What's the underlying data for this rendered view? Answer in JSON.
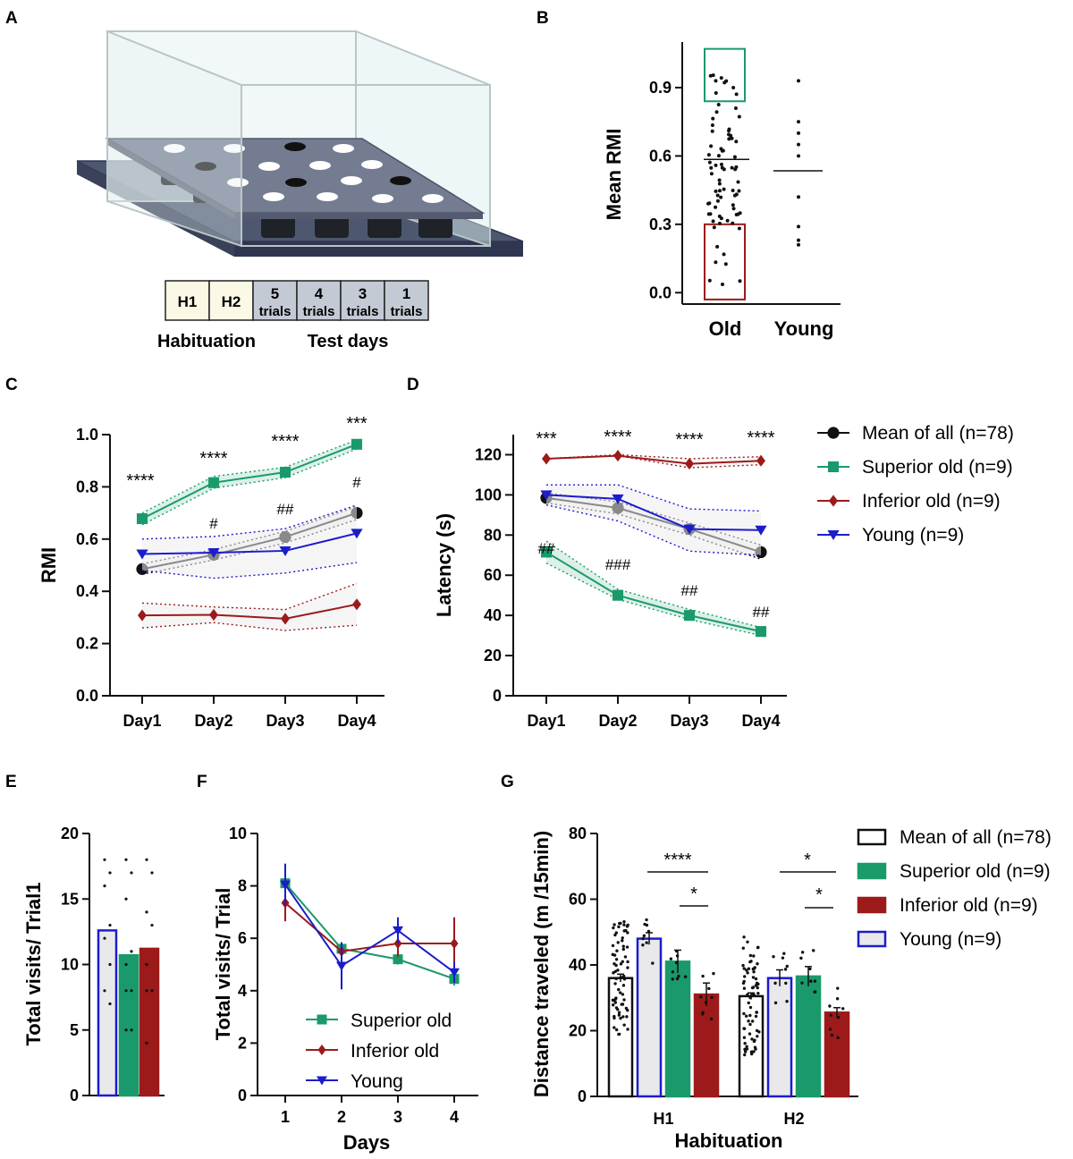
{
  "panel_letters": [
    "A",
    "B",
    "C",
    "D",
    "E",
    "F",
    "G"
  ],
  "panel_a": {
    "timeline_boxes": [
      {
        "main": "H1",
        "sub": ""
      },
      {
        "main": "H2",
        "sub": ""
      },
      {
        "main": "5",
        "sub": "trials"
      },
      {
        "main": "4",
        "sub": "trials"
      },
      {
        "main": "3",
        "sub": "trials"
      },
      {
        "main": "1",
        "sub": "trials"
      }
    ],
    "habituation_label": "Habituation",
    "test_label": "Test days"
  },
  "colors": {
    "black": "#111111",
    "green": "#1a9a6a",
    "red": "#9c1a1a",
    "blue": "#1c1ccc",
    "gray_fill": "#e9e9ec"
  },
  "chart_data": [
    {
      "id": "B",
      "type": "scatter",
      "ylabel": "Mean RMI",
      "ylim": [
        -0.05,
        1.1
      ],
      "yticks": [
        0.0,
        0.3,
        0.6,
        0.9
      ],
      "ytick_labels": [
        "0.0",
        "0.3",
        "0.6",
        "0.9"
      ],
      "categories": [
        "Old",
        "Young"
      ],
      "old_mean": 0.585,
      "young_mean": 0.535,
      "young_points": [
        0.93,
        0.75,
        0.7,
        0.65,
        0.6,
        0.42,
        0.29,
        0.23,
        0.21
      ],
      "old_highlight_top": [
        0.84,
        1.07
      ],
      "old_highlight_bottom": [
        -0.03,
        0.3
      ]
    },
    {
      "id": "C",
      "type": "line",
      "ylabel": "RMI",
      "categories": [
        "Day1",
        "Day2",
        "Day3",
        "Day4"
      ],
      "ylim": [
        0.0,
        1.0
      ],
      "yticks": [
        0.0,
        0.2,
        0.4,
        0.6,
        0.8,
        1.0
      ],
      "ytick_labels": [
        "0.0",
        "0.2",
        "0.4",
        "0.6",
        "0.8",
        "1.0"
      ],
      "series": [
        {
          "name": "Mean of all (n=78)",
          "color": "#111111",
          "marker": "circle",
          "values": [
            0.485,
            0.54,
            0.608,
            0.7
          ],
          "lower": [
            0.465,
            0.52,
            0.585,
            0.675
          ],
          "upper": [
            0.505,
            0.56,
            0.63,
            0.725
          ]
        },
        {
          "name": "Superior old (n=9)",
          "color": "#1a9a6a",
          "marker": "square",
          "values": [
            0.678,
            0.816,
            0.856,
            0.963
          ],
          "lower": [
            0.655,
            0.795,
            0.835,
            0.945
          ],
          "upper": [
            0.7,
            0.84,
            0.875,
            0.98
          ]
        },
        {
          "name": "Inferior old (n=9)",
          "color": "#9c1a1a",
          "marker": "diamond",
          "values": [
            0.308,
            0.31,
            0.295,
            0.35
          ],
          "lower": [
            0.26,
            0.28,
            0.25,
            0.27
          ],
          "upper": [
            0.355,
            0.34,
            0.33,
            0.43
          ]
        },
        {
          "name": "Young (n=9)",
          "color": "#1c1ccc",
          "marker": "triangle",
          "values": [
            0.543,
            0.548,
            0.555,
            0.622
          ],
          "lower": [
            0.48,
            0.45,
            0.47,
            0.51
          ],
          "upper": [
            0.6,
            0.61,
            0.64,
            0.73
          ]
        }
      ],
      "stars": [
        "****",
        "****",
        "****",
        "***"
      ],
      "hashes": [
        "",
        "#",
        "##",
        "#"
      ]
    },
    {
      "id": "D",
      "type": "line",
      "ylabel": "Latency (s)",
      "categories": [
        "Day1",
        "Day2",
        "Day3",
        "Day4"
      ],
      "ylim": [
        0,
        130
      ],
      "yticks": [
        0,
        20,
        40,
        60,
        80,
        100,
        120
      ],
      "ytick_labels": [
        "0",
        "20",
        "40",
        "60",
        "80",
        "100",
        "120"
      ],
      "series": [
        {
          "name": "Mean of all (n=78)",
          "color": "#111111",
          "marker": "circle",
          "values": [
            98.5,
            93.5,
            83,
            71.5
          ],
          "lower": [
            96,
            90.5,
            80,
            68
          ],
          "upper": [
            101,
            96.5,
            86,
            75
          ]
        },
        {
          "name": "Superior old (n=9)",
          "color": "#1a9a6a",
          "marker": "square",
          "values": [
            71.5,
            50,
            40,
            32
          ],
          "lower": [
            66,
            48,
            38,
            30
          ],
          "upper": [
            77,
            53,
            43,
            34
          ]
        },
        {
          "name": "Inferior old (n=9)",
          "color": "#9c1a1a",
          "marker": "diamond",
          "values": [
            118,
            119.5,
            115.5,
            117
          ],
          "lower": [
            118,
            119.5,
            113.5,
            115
          ],
          "upper": [
            118,
            120,
            118,
            119
          ]
        },
        {
          "name": "Young (n=9)",
          "color": "#1c1ccc",
          "marker": "triangle",
          "values": [
            100,
            98,
            83,
            82.5
          ],
          "lower": [
            95,
            87,
            72,
            70
          ],
          "upper": [
            105,
            105,
            93,
            92
          ]
        }
      ],
      "stars": [
        "***",
        "****",
        "****",
        "****"
      ],
      "hashes": [
        "##",
        "###",
        "##",
        "##"
      ],
      "legend": [
        "Mean of all (n=78)",
        "Superior old (n=9)",
        "Inferior old (n=9)",
        "Young (n=9)"
      ]
    },
    {
      "id": "E",
      "type": "bar",
      "ylabel": "Total visits/ Trial1",
      "ylim": [
        0,
        20
      ],
      "yticks": [
        0,
        5,
        10,
        15,
        20
      ],
      "ytick_labels": [
        "0",
        "5",
        "10",
        "15",
        "20"
      ],
      "bars": [
        {
          "name": "Young",
          "value": 12.6,
          "fill": "#e9e9ec",
          "stroke": "#1c1ccc",
          "points": [
            18,
            17,
            16,
            13,
            12,
            10,
            8,
            7
          ]
        },
        {
          "name": "Superior old",
          "value": 10.7,
          "fill": "#1a9a6a",
          "stroke": "#1a9a6a",
          "points": [
            18,
            17,
            15,
            11,
            10,
            8,
            8,
            5,
            5
          ]
        },
        {
          "name": "Inferior old",
          "value": 11.2,
          "fill": "#9c1a1a",
          "stroke": "#9c1a1a",
          "points": [
            18,
            17,
            14,
            13,
            10,
            8,
            8,
            8,
            4
          ]
        }
      ]
    },
    {
      "id": "F",
      "type": "line",
      "ylabel": "Total visits/ Trial",
      "xlabel": "Days",
      "categories": [
        "1",
        "2",
        "3",
        "4"
      ],
      "ylim": [
        0,
        10
      ],
      "yticks": [
        0,
        2,
        4,
        6,
        8,
        10
      ],
      "ytick_labels": [
        "0",
        "2",
        "4",
        "6",
        "8",
        "10"
      ],
      "series": [
        {
          "name": "Superior old",
          "color": "#1a9a6a",
          "marker": "square",
          "values": [
            8.1,
            5.6,
            5.2,
            4.45
          ],
          "err": [
            0.6,
            0.2,
            0.2,
            0.25
          ]
        },
        {
          "name": "Inferior old",
          "color": "#9c1a1a",
          "marker": "diamond",
          "values": [
            7.35,
            5.5,
            5.8,
            5.8
          ],
          "err": [
            0.7,
            0.3,
            0.5,
            1.0
          ]
        },
        {
          "name": "Young",
          "color": "#1c1ccc",
          "marker": "triangle",
          "values": [
            8.05,
            4.95,
            6.3,
            4.7
          ],
          "err": [
            0.8,
            0.9,
            0.5,
            0.4
          ]
        }
      ],
      "legend": [
        "Superior old",
        "Inferior old",
        "Young"
      ]
    },
    {
      "id": "G",
      "type": "bar",
      "ylabel": "Distance traveled  (m /15min)",
      "xlabel": "Habituation",
      "categories": [
        "H1",
        "H2"
      ],
      "ylim": [
        0,
        80
      ],
      "yticks": [
        0,
        20,
        40,
        60,
        80
      ],
      "ytick_labels": [
        "0",
        "20",
        "40",
        "60",
        "80"
      ],
      "series": [
        {
          "name": "Mean of all (n=78)",
          "fill": "#ffffff",
          "stroke": "#111111",
          "values": [
            36,
            30.5
          ],
          "err": [
            1.2,
            1.0
          ]
        },
        {
          "name": "Young (n=9)",
          "fill": "#e9e9ec",
          "stroke": "#1c1ccc",
          "values": [
            48,
            36
          ],
          "err": [
            1.8,
            2.5
          ]
        },
        {
          "name": "Superior old (n=9)",
          "fill": "#1a9a6a",
          "stroke": "#1a9a6a",
          "values": [
            41,
            36.5
          ],
          "err": [
            3.5,
            3.0
          ]
        },
        {
          "name": "Inferior old (n=9)",
          "fill": "#9c1a1a",
          "stroke": "#9c1a1a",
          "values": [
            31,
            25.5
          ],
          "err": [
            3.5,
            1.5
          ]
        }
      ],
      "sig_h1": [
        "****",
        "*"
      ],
      "sig_h2": [
        "*",
        "*"
      ],
      "legend": [
        "Mean of all (n=78)",
        "Superior old (n=9)",
        "Inferior old (n=9)",
        "Young (n=9)"
      ]
    }
  ]
}
